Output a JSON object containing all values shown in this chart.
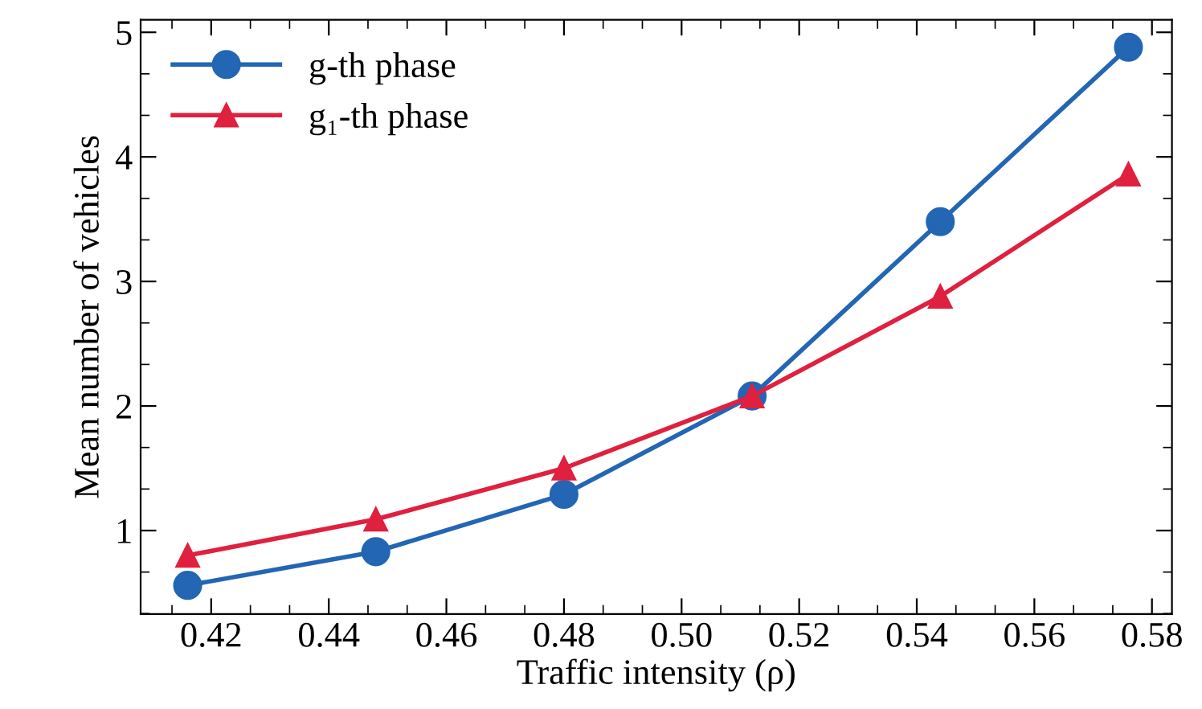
{
  "chart_data": {
    "type": "line",
    "xlabel": "Traffic intensity (ρ)",
    "ylabel": "Mean number of vehicles",
    "x": [
      0.416,
      0.448,
      0.48,
      0.512,
      0.544,
      0.576
    ],
    "series": [
      {
        "name": "g-th phase",
        "color": "#2266b4",
        "marker": "circle",
        "values": [
          0.56,
          0.83,
          1.29,
          2.08,
          3.48,
          4.88
        ]
      },
      {
        "name": "g₁-th phase",
        "color": "#e0203f",
        "marker": "triangle",
        "values": [
          0.8,
          1.09,
          1.5,
          2.08,
          2.88,
          3.86
        ]
      }
    ],
    "xlim": [
      0.408,
      0.5834
    ],
    "ylim": [
      0.33,
      5.1
    ],
    "xticks": [
      {
        "value": 0.42,
        "label": "0.42"
      },
      {
        "value": 0.44,
        "label": "0.44"
      },
      {
        "value": 0.46,
        "label": "0.46"
      },
      {
        "value": 0.48,
        "label": "0.48"
      },
      {
        "value": 0.5,
        "label": "0.50"
      },
      {
        "value": 0.52,
        "label": "0.52"
      },
      {
        "value": 0.54,
        "label": "0.54"
      },
      {
        "value": 0.56,
        "label": "0.56"
      },
      {
        "value": 0.58,
        "label": "0.58"
      }
    ],
    "yticks": [
      1,
      2,
      3,
      4,
      5
    ],
    "grid": false,
    "legend": "top left",
    "line_style": "solid"
  }
}
